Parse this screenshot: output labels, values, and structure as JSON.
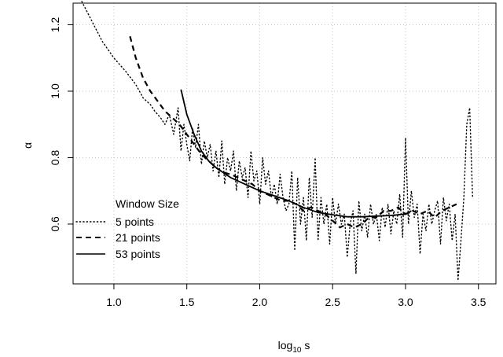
{
  "chart_data": {
    "type": "line",
    "xlabel_base": "log",
    "xlabel_sub": "10",
    "xlabel_rest": " s",
    "ylabel": "α",
    "xlim": [
      0.72,
      3.62
    ],
    "ylim": [
      0.42,
      1.265
    ],
    "xticks": [
      1.0,
      1.5,
      2.0,
      2.5,
      3.0,
      3.5
    ],
    "xtick_labels": [
      "1.0",
      "1.5",
      "2.0",
      "2.5",
      "3.0",
      "3.5"
    ],
    "yticks": [
      0.6,
      0.8,
      1.0,
      1.2
    ],
    "ytick_labels": [
      "0.6",
      "0.8",
      "1.0",
      "1.2"
    ],
    "grid": true,
    "legend_position": "bottom-left",
    "legend_title": "Window Size",
    "series": [
      {
        "name": "5 points",
        "style": "dotted",
        "x": [
          0.78,
          0.85,
          0.92,
          1.0,
          1.08,
          1.15,
          1.2,
          1.25,
          1.28,
          1.32,
          1.35,
          1.38,
          1.41,
          1.44,
          1.46,
          1.48,
          1.5,
          1.52,
          1.54,
          1.56,
          1.58,
          1.6,
          1.62,
          1.64,
          1.66,
          1.68,
          1.7,
          1.72,
          1.74,
          1.76,
          1.78,
          1.8,
          1.82,
          1.84,
          1.86,
          1.88,
          1.9,
          1.92,
          1.94,
          1.96,
          1.98,
          2.0,
          2.02,
          2.04,
          2.06,
          2.08,
          2.1,
          2.12,
          2.14,
          2.16,
          2.18,
          2.2,
          2.22,
          2.24,
          2.26,
          2.28,
          2.3,
          2.32,
          2.34,
          2.36,
          2.38,
          2.4,
          2.42,
          2.44,
          2.46,
          2.48,
          2.5,
          2.52,
          2.54,
          2.56,
          2.58,
          2.6,
          2.62,
          2.64,
          2.66,
          2.68,
          2.7,
          2.72,
          2.74,
          2.76,
          2.78,
          2.8,
          2.82,
          2.84,
          2.86,
          2.88,
          2.9,
          2.92,
          2.94,
          2.96,
          2.98,
          3.0,
          3.02,
          3.04,
          3.06,
          3.08,
          3.1,
          3.12,
          3.14,
          3.16,
          3.18,
          3.2,
          3.22,
          3.24,
          3.26,
          3.28,
          3.3,
          3.32,
          3.34,
          3.36,
          3.38,
          3.4,
          3.42,
          3.44,
          3.46
        ],
        "y": [
          1.27,
          1.21,
          1.15,
          1.1,
          1.06,
          1.02,
          0.98,
          0.96,
          0.94,
          0.92,
          0.9,
          0.93,
          0.87,
          0.95,
          0.82,
          0.9,
          0.84,
          0.79,
          0.89,
          0.83,
          0.9,
          0.78,
          0.85,
          0.8,
          0.84,
          0.76,
          0.82,
          0.74,
          0.85,
          0.72,
          0.8,
          0.76,
          0.82,
          0.7,
          0.79,
          0.74,
          0.77,
          0.68,
          0.82,
          0.73,
          0.76,
          0.66,
          0.8,
          0.72,
          0.76,
          0.68,
          0.72,
          0.66,
          0.75,
          0.68,
          0.64,
          0.66,
          0.76,
          0.52,
          0.74,
          0.6,
          0.68,
          0.55,
          0.74,
          0.62,
          0.8,
          0.55,
          0.68,
          0.6,
          0.66,
          0.54,
          0.68,
          0.6,
          0.66,
          0.6,
          0.63,
          0.5,
          0.6,
          0.64,
          0.45,
          0.67,
          0.58,
          0.63,
          0.56,
          0.66,
          0.6,
          0.63,
          0.55,
          0.65,
          0.59,
          0.66,
          0.57,
          0.64,
          0.6,
          0.69,
          0.56,
          0.86,
          0.6,
          0.7,
          0.62,
          0.66,
          0.51,
          0.63,
          0.58,
          0.66,
          0.6,
          0.64,
          0.67,
          0.54,
          0.68,
          0.61,
          0.66,
          0.55,
          0.63,
          0.43,
          0.55,
          0.68,
          0.9,
          0.95,
          0.68
        ]
      },
      {
        "name": "21 points",
        "style": "dashed",
        "x": [
          1.11,
          1.15,
          1.2,
          1.25,
          1.3,
          1.35,
          1.4,
          1.45,
          1.5,
          1.55,
          1.6,
          1.65,
          1.7,
          1.75,
          1.8,
          1.85,
          1.9,
          1.95,
          2.0,
          2.05,
          2.1,
          2.15,
          2.2,
          2.25,
          2.3,
          2.35,
          2.4,
          2.45,
          2.5,
          2.55,
          2.6,
          2.65,
          2.7,
          2.75,
          2.8,
          2.85,
          2.9,
          2.95,
          3.0,
          3.05,
          3.1,
          3.15,
          3.2,
          3.25,
          3.3,
          3.35
        ],
        "y": [
          1.165,
          1.1,
          1.04,
          1.0,
          0.97,
          0.94,
          0.92,
          0.9,
          0.87,
          0.84,
          0.81,
          0.79,
          0.77,
          0.755,
          0.75,
          0.74,
          0.73,
          0.72,
          0.7,
          0.69,
          0.68,
          0.67,
          0.67,
          0.66,
          0.64,
          0.65,
          0.64,
          0.63,
          0.61,
          0.59,
          0.6,
          0.59,
          0.6,
          0.62,
          0.62,
          0.64,
          0.64,
          0.65,
          0.63,
          0.64,
          0.63,
          0.64,
          0.62,
          0.64,
          0.65,
          0.66
        ]
      },
      {
        "name": "53 points",
        "style": "solid",
        "x": [
          1.46,
          1.5,
          1.55,
          1.6,
          1.65,
          1.7,
          1.75,
          1.8,
          1.9,
          2.0,
          2.1,
          2.2,
          2.3,
          2.4,
          2.5,
          2.6,
          2.7,
          2.8,
          2.9,
          3.0,
          3.04
        ],
        "y": [
          1.005,
          0.93,
          0.87,
          0.82,
          0.79,
          0.77,
          0.755,
          0.74,
          0.72,
          0.7,
          0.685,
          0.67,
          0.65,
          0.635,
          0.628,
          0.622,
          0.622,
          0.624,
          0.626,
          0.63,
          0.64
        ]
      }
    ]
  }
}
